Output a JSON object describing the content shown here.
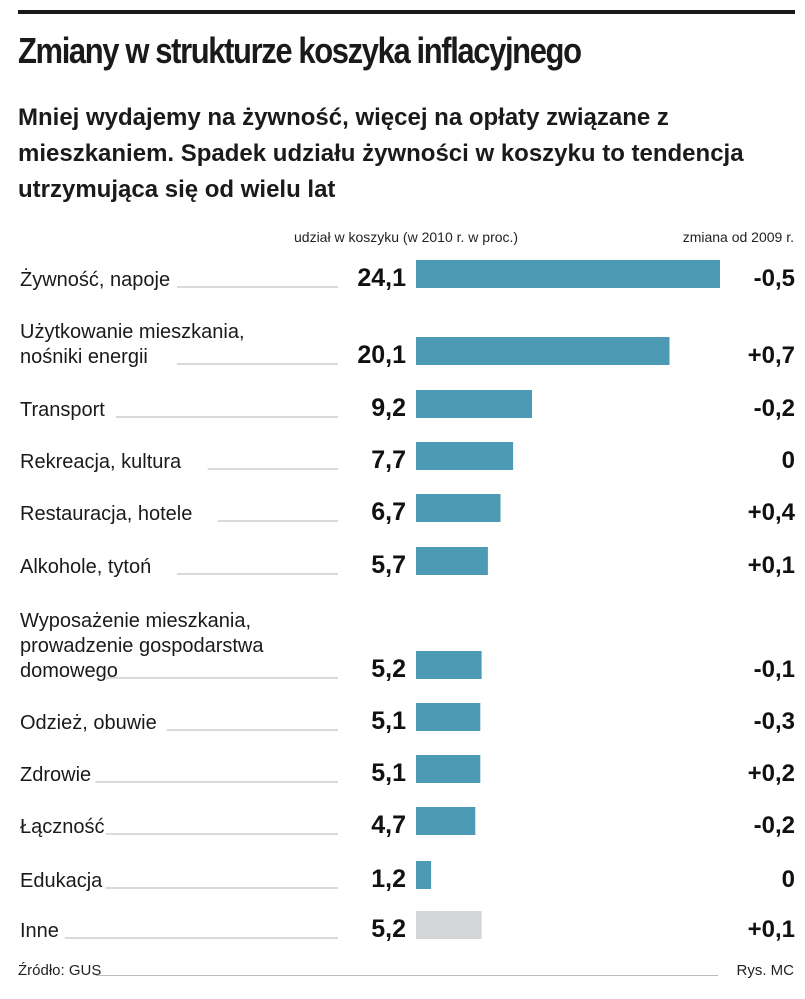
{
  "header": {
    "title": "Zmiany w strukturze koszyka inflacyjnego",
    "subtitle": "Mniej wydajemy na żywność, więcej na opłaty związane z mieszkaniem. Spadek udziału żywności w koszyku to tendencja utrzymująca się od wielu lat"
  },
  "columns": {
    "share": "udział w koszyku (w 2010 r. w proc.)",
    "change": "zmiana od 2009 r."
  },
  "chart_data": {
    "type": "bar",
    "orientation": "horizontal",
    "title": "Zmiany w strukturze koszyka inflacyjnego",
    "categories": [
      [
        "Żywność, napoje"
      ],
      [
        "Użytkowanie mieszkania,",
        "nośniki energii"
      ],
      [
        "Transport"
      ],
      [
        "Rekreacja, kultura"
      ],
      [
        "Restauracja, hotele"
      ],
      [
        "Alkohole, tytoń"
      ],
      [
        "Wyposażenie mieszkania,",
        "prowadzenie gospodarstwa",
        "domowego"
      ],
      [
        "Odzież, obuwie"
      ],
      [
        "Zdrowie"
      ],
      [
        "Łączność"
      ],
      [
        "Edukacja"
      ],
      [
        "Inne"
      ]
    ],
    "values": [
      24.1,
      20.1,
      9.2,
      7.7,
      6.7,
      5.7,
      5.2,
      5.1,
      5.1,
      4.7,
      1.2,
      5.2
    ],
    "value_labels": [
      "24,1",
      "20,1",
      "9,2",
      "7,7",
      "6,7",
      "5,7",
      "5,2",
      "5,1",
      "5,1",
      "4,7",
      "1,2",
      "5,2"
    ],
    "changes": [
      "-0,5",
      "+0,7",
      "-0,2",
      "0",
      "+0,4",
      "+0,1",
      "-0,1",
      "-0,3",
      "+0,2",
      "-0,2",
      "0",
      "+0,1"
    ],
    "xlim": [
      0,
      24.1
    ],
    "grid": false,
    "colors": {
      "bar": "#4c9ab4",
      "bar_other": "#d3d6d9",
      "leader": "#b5b5b5"
    }
  },
  "footer": {
    "source": "Źródło: GUS",
    "credit": "Rys. MC"
  }
}
